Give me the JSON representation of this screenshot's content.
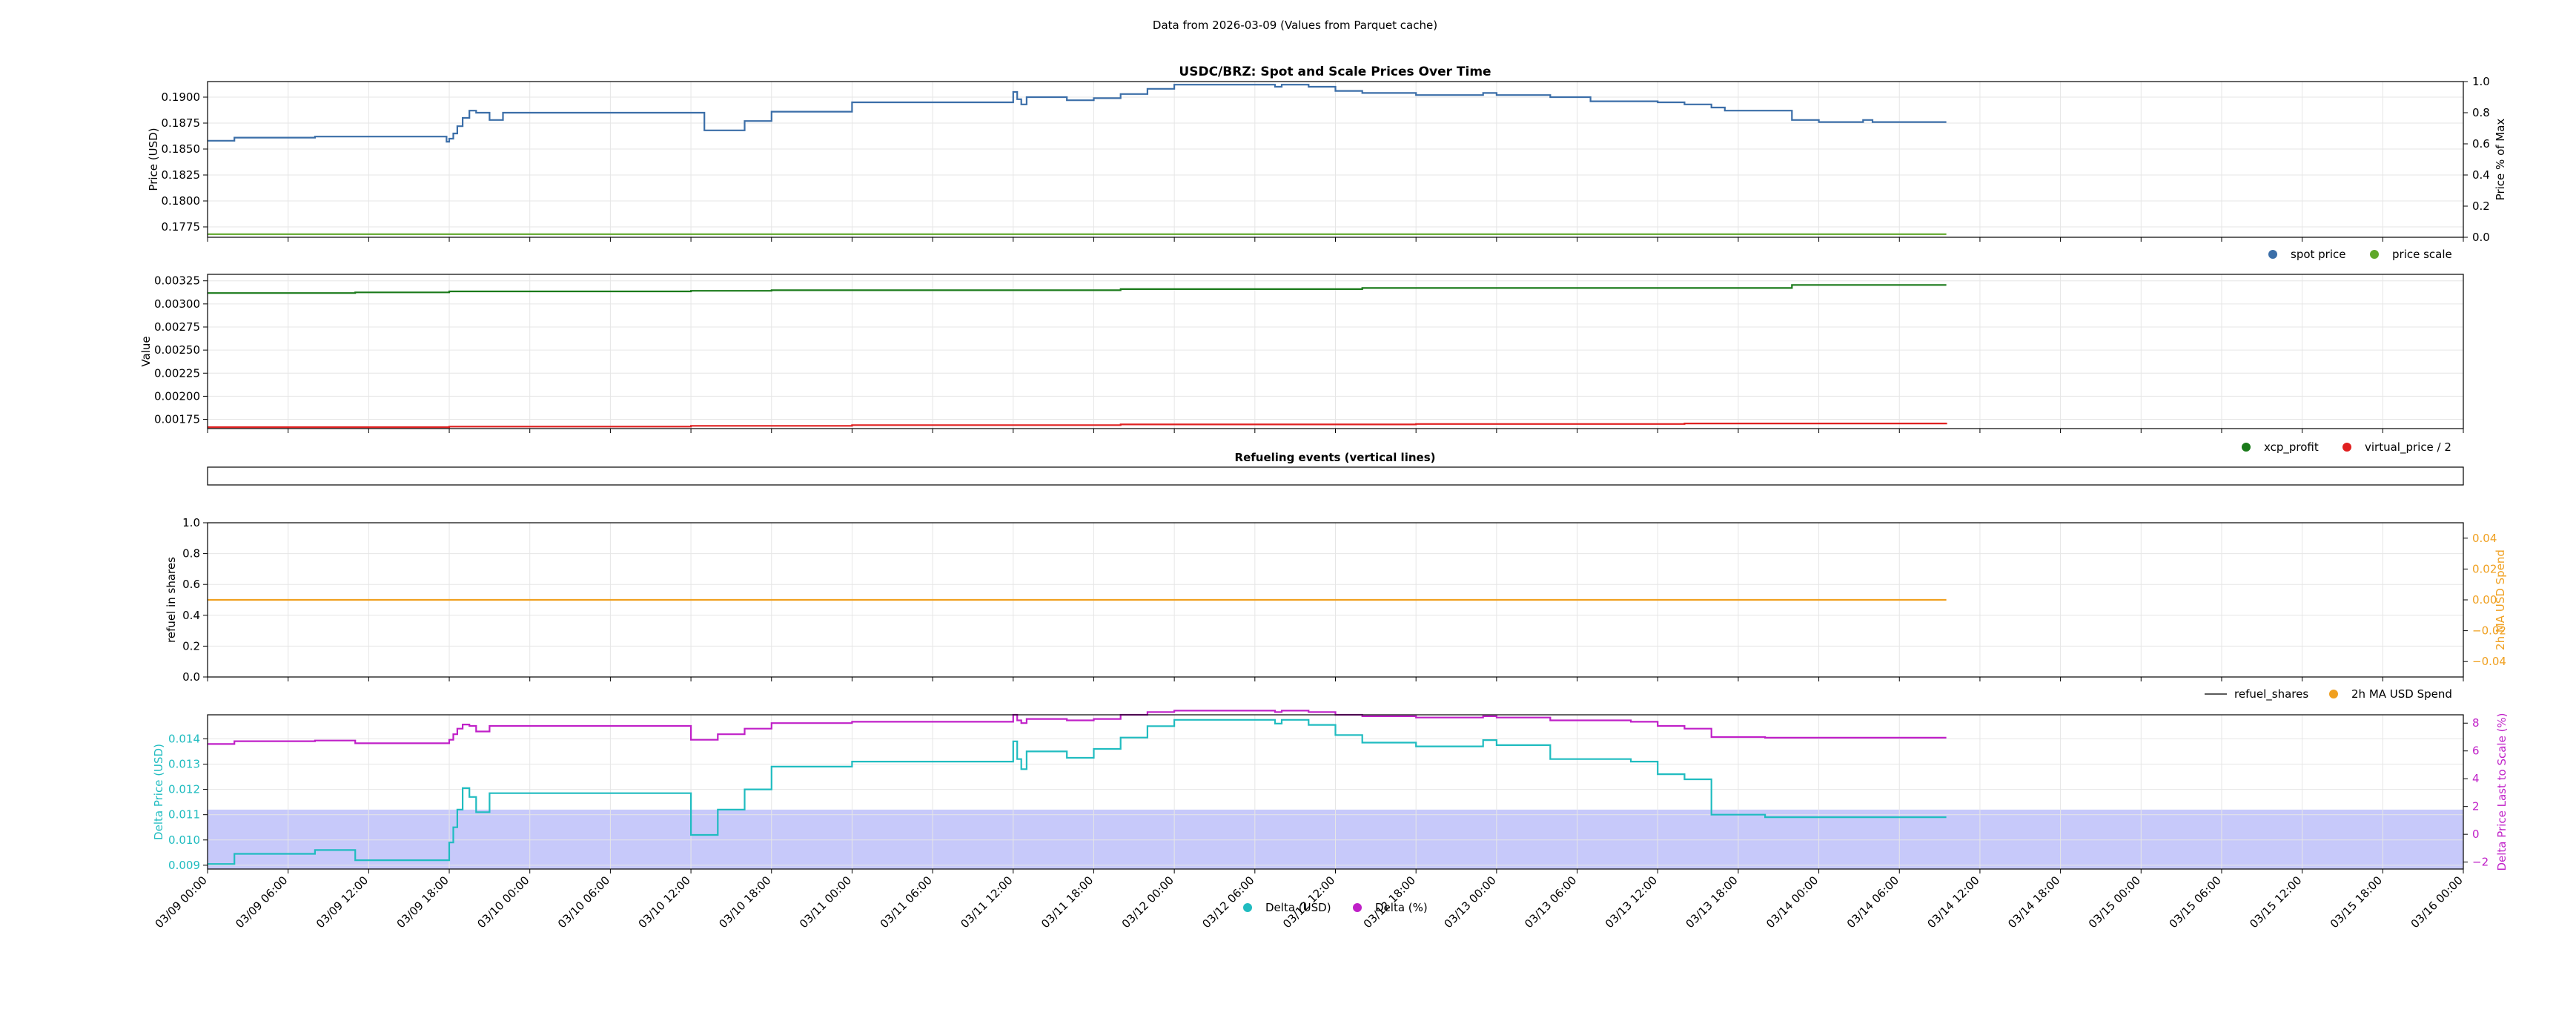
{
  "page": {
    "caption": "Data from 2026-03-09 (Values from Parquet cache)"
  },
  "x_axis": {
    "range": [
      "2026-03-09 00:00",
      "2026-03-16 00:00"
    ],
    "tick_labels": [
      "03/09 00:00",
      "03/09 06:00",
      "03/09 12:00",
      "03/09 18:00",
      "03/10 00:00",
      "03/10 06:00",
      "03/10 12:00",
      "03/10 18:00",
      "03/11 00:00",
      "03/11 06:00",
      "03/11 12:00",
      "03/11 18:00",
      "03/12 00:00",
      "03/12 06:00",
      "03/12 12:00",
      "03/12 18:00",
      "03/13 00:00",
      "03/13 06:00",
      "03/13 12:00",
      "03/13 18:00",
      "03/14 00:00",
      "03/14 06:00",
      "03/14 12:00",
      "03/14 18:00",
      "03/15 00:00",
      "03/15 06:00",
      "03/15 12:00",
      "03/15 18:00",
      "03/16 00:00"
    ]
  },
  "chart_data": [
    {
      "type": "line",
      "title": "USDC/BRZ: Spot and Scale Prices Over Time",
      "ylabel": "Price (USD)",
      "ylim": [
        0.1765,
        0.1915
      ],
      "yticks": [
        "0.1775",
        "0.1800",
        "0.1825",
        "0.1850",
        "0.1875",
        "0.1900"
      ],
      "y2label": "Price % of Max",
      "y2lim": [
        0,
        1
      ],
      "y2ticks": [
        "0.0",
        "0.2",
        "0.4",
        "0.6",
        "0.8",
        "1.0"
      ],
      "legend": "bottom-right",
      "series": [
        {
          "name": "spot price",
          "color": "#3b6ea8",
          "axis": "left",
          "x": [
            0,
            2,
            8,
            11,
            17.8,
            18,
            18.3,
            18.6,
            19,
            19.5,
            20,
            21,
            22,
            36,
            37,
            38,
            40,
            42,
            48,
            60,
            60.3,
            60.6,
            61,
            62,
            64,
            66,
            68,
            70,
            72,
            79,
            79.5,
            80,
            81,
            82,
            84,
            85,
            86,
            90,
            95,
            96,
            100,
            103,
            106,
            108,
            110,
            112,
            113,
            116,
            118,
            120,
            123,
            123.3,
            124,
            129.5
          ],
          "y": [
            0.1858,
            0.1861,
            0.1862,
            0.1862,
            0.1857,
            0.186,
            0.1865,
            0.1872,
            0.188,
            0.1887,
            0.1885,
            0.1878,
            0.1885,
            0.1885,
            0.1868,
            0.1868,
            0.1877,
            0.1886,
            0.1895,
            0.1905,
            0.1898,
            0.1893,
            0.19,
            0.19,
            0.1897,
            0.1899,
            0.1903,
            0.1908,
            0.1912,
            0.1912,
            0.191,
            0.1912,
            0.1912,
            0.191,
            0.1906,
            0.1906,
            0.1904,
            0.1902,
            0.1904,
            0.1902,
            0.19,
            0.1896,
            0.1896,
            0.1895,
            0.1893,
            0.189,
            0.1887,
            0.1887,
            0.1878,
            0.1876,
            0.1876,
            0.1878,
            0.1876,
            0.1876
          ]
        },
        {
          "name": "price scale",
          "color": "#5fa82a",
          "axis": "left",
          "x": [
            0,
            129.5
          ],
          "y": [
            0.1768,
            0.1768
          ]
        }
      ]
    },
    {
      "type": "line",
      "title": "",
      "ylabel": "Value",
      "ylim": [
        0.00165,
        0.00332
      ],
      "yticks": [
        "0.00175",
        "0.00200",
        "0.00225",
        "0.00250",
        "0.00275",
        "0.00300",
        "0.00325"
      ],
      "legend": "bottom-right",
      "series": [
        {
          "name": "xcp_profit",
          "color": "#1a7a1a",
          "x": [
            0,
            11,
            18,
            36,
            42,
            68,
            86,
            118,
            129.5
          ],
          "y": [
            0.003118,
            0.003125,
            0.003135,
            0.003142,
            0.003148,
            0.00316,
            0.003172,
            0.003205,
            0.003205
          ]
        },
        {
          "name": "virtual_price / 2",
          "color": "#e02020",
          "x": [
            0,
            18,
            36,
            48,
            68,
            90,
            110,
            129.5
          ],
          "y": [
            0.001665,
            0.001672,
            0.00168,
            0.001688,
            0.001695,
            0.0017,
            0.001705,
            0.001712
          ]
        }
      ]
    },
    {
      "type": "line",
      "title": "Refueling events (vertical lines)",
      "series": []
    },
    {
      "type": "line",
      "title": "",
      "ylabel": "refuel in shares",
      "ylim": [
        0,
        1
      ],
      "yticks": [
        "0.0",
        "0.2",
        "0.4",
        "0.6",
        "0.8",
        "1.0"
      ],
      "y2label": "2h MA USD Spend",
      "y2lim": [
        -0.05,
        0.05
      ],
      "y2ticks": [
        "−0.04",
        "−0.02",
        "0.00",
        "0.02",
        "0.04"
      ],
      "legend": "bottom-right",
      "series": [
        {
          "name": "refuel_shares",
          "color": "#5a5a5a",
          "x": [],
          "y": []
        },
        {
          "name": "2h MA USD Spend",
          "color": "#f0a020",
          "axis": "right",
          "x": [
            0,
            129.5
          ],
          "y": [
            0,
            0
          ]
        }
      ]
    },
    {
      "type": "line",
      "title": "",
      "ylabel": "Delta Price (USD)",
      "ylim": [
        0.00885,
        0.01495
      ],
      "yticks": [
        "0.009",
        "0.010",
        "0.011",
        "0.012",
        "0.013",
        "0.014"
      ],
      "y2label": "Delta Price Last to Scale (%)",
      "y2lim": [
        -2.5,
        8.6
      ],
      "y2ticks": [
        "−2",
        "0",
        "2",
        "4",
        "6",
        "8"
      ],
      "band": {
        "from": 0.0087,
        "to": 0.0112,
        "color": "#c7c9fa"
      },
      "legend": "bottom-center",
      "series": [
        {
          "name": "Delta (USD)",
          "color": "#20bcc0",
          "axis": "left",
          "x": [
            0,
            2,
            6,
            8,
            11,
            17.8,
            18,
            18.3,
            18.6,
            19,
            19.5,
            20,
            21,
            22,
            36,
            37,
            38,
            40,
            42,
            48,
            60,
            60.3,
            60.6,
            61,
            62,
            64,
            66,
            68,
            70,
            72,
            79,
            79.5,
            80,
            81,
            82,
            84,
            85,
            86,
            90,
            95,
            96,
            100,
            103,
            106,
            108,
            110,
            112,
            113,
            116,
            118,
            120,
            123,
            123.3,
            124,
            129.5
          ],
          "y": [
            0.00905,
            0.00945,
            0.00945,
            0.0096,
            0.0092,
            0.0092,
            0.0099,
            0.0105,
            0.0112,
            0.01205,
            0.0117,
            0.0111,
            0.01185,
            0.01185,
            0.0102,
            0.0102,
            0.0112,
            0.012,
            0.0129,
            0.0131,
            0.0139,
            0.0132,
            0.0128,
            0.0135,
            0.0135,
            0.01325,
            0.0136,
            0.01405,
            0.0145,
            0.01475,
            0.01475,
            0.0146,
            0.01475,
            0.01475,
            0.01455,
            0.01415,
            0.01415,
            0.01385,
            0.0137,
            0.01395,
            0.01375,
            0.0132,
            0.0132,
            0.0131,
            0.0126,
            0.0124,
            0.011,
            0.011,
            0.0109,
            0.0109,
            0.0109,
            0.0109,
            0.0109,
            0.0109,
            0.0109
          ]
        },
        {
          "name": "Delta (%)",
          "color": "#c020c8",
          "axis": "right",
          "x": [
            0,
            2,
            6,
            8,
            11,
            17.8,
            18,
            18.3,
            18.6,
            19,
            19.5,
            20,
            21,
            22,
            36,
            37,
            38,
            40,
            42,
            48,
            60,
            60.3,
            60.6,
            61,
            62,
            64,
            66,
            68,
            70,
            72,
            79,
            79.5,
            80,
            81,
            82,
            84,
            85,
            86,
            90,
            95,
            96,
            100,
            103,
            106,
            108,
            110,
            112,
            113,
            116,
            118,
            120,
            123,
            123.3,
            124,
            129.5
          ],
          "y": [
            6.5,
            6.7,
            6.7,
            6.75,
            6.55,
            6.55,
            6.8,
            7.2,
            7.6,
            7.9,
            7.8,
            7.4,
            7.8,
            7.8,
            6.8,
            6.8,
            7.2,
            7.6,
            8.0,
            8.1,
            8.6,
            8.2,
            8.0,
            8.3,
            8.3,
            8.2,
            8.3,
            8.6,
            8.8,
            8.9,
            8.9,
            8.8,
            8.9,
            8.9,
            8.8,
            8.6,
            8.6,
            8.5,
            8.4,
            8.5,
            8.4,
            8.2,
            8.2,
            8.1,
            7.8,
            7.6,
            7.0,
            7.0,
            6.95,
            6.95,
            6.95,
            6.95,
            6.95,
            6.95,
            6.95
          ]
        }
      ]
    }
  ]
}
